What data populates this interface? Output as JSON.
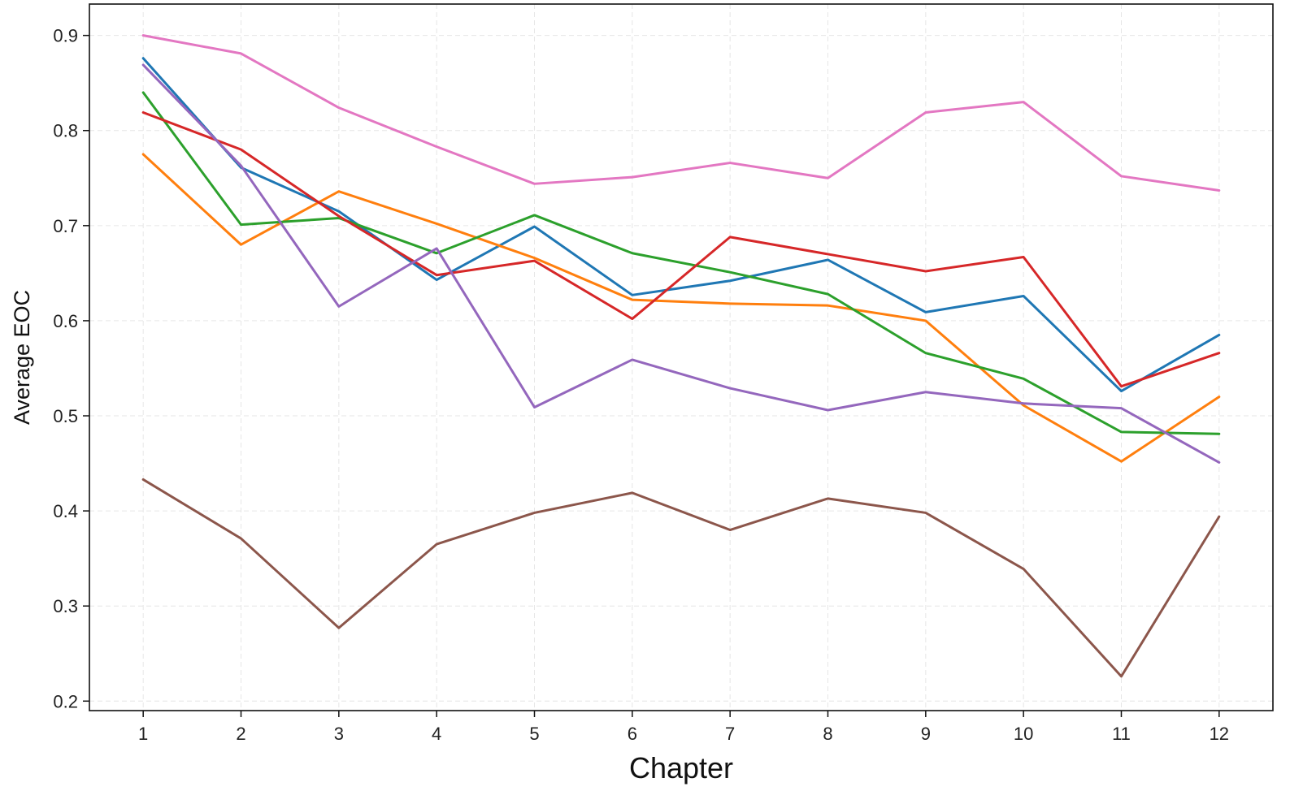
{
  "chart_data": {
    "type": "line",
    "title": "",
    "xlabel": "Chapter",
    "ylabel": "Average EOC",
    "x": [
      1,
      2,
      3,
      4,
      5,
      6,
      7,
      8,
      9,
      10,
      11,
      12
    ],
    "x_tick_labels": [
      "1",
      "2",
      "3",
      "4",
      "5",
      "6",
      "7",
      "8",
      "9",
      "10",
      "11",
      "12"
    ],
    "y_ticks": [
      0.2,
      0.3,
      0.4,
      0.5,
      0.6,
      0.7,
      0.8,
      0.9
    ],
    "y_tick_labels": [
      "0.2",
      "0.3",
      "0.4",
      "0.5",
      "0.6",
      "0.7",
      "0.8",
      "0.9"
    ],
    "xlim": [
      0.45,
      12.55
    ],
    "ylim": [
      0.19,
      0.933
    ],
    "grid": true,
    "legend": "none",
    "series": [
      {
        "color": "#1f77b4",
        "values": [
          0.876,
          0.761,
          0.715,
          0.643,
          0.699,
          0.627,
          0.642,
          0.664,
          0.609,
          0.626,
          0.526,
          0.585
        ]
      },
      {
        "color": "#ff7f0e",
        "values": [
          0.775,
          0.68,
          0.736,
          0.702,
          0.666,
          0.622,
          0.618,
          0.616,
          0.6,
          0.511,
          0.452,
          0.52
        ]
      },
      {
        "color": "#2ca02c",
        "values": [
          0.84,
          0.701,
          0.708,
          0.671,
          0.711,
          0.671,
          0.651,
          0.628,
          0.566,
          0.539,
          0.483,
          0.481
        ]
      },
      {
        "color": "#d62728",
        "values": [
          0.819,
          0.78,
          0.71,
          0.648,
          0.663,
          0.602,
          0.688,
          0.67,
          0.652,
          0.667,
          0.531,
          0.566
        ]
      },
      {
        "color": "#9467bd",
        "values": [
          0.869,
          0.763,
          0.615,
          0.676,
          0.509,
          0.559,
          0.529,
          0.506,
          0.525,
          0.513,
          0.508,
          0.451
        ]
      },
      {
        "color": "#8c564b",
        "values": [
          0.433,
          0.371,
          0.277,
          0.365,
          0.398,
          0.419,
          0.38,
          0.413,
          0.398,
          0.339,
          0.226,
          0.394
        ]
      },
      {
        "color": "#e377c2",
        "values": [
          0.9,
          0.881,
          0.824,
          0.783,
          0.744,
          0.751,
          0.766,
          0.75,
          0.819,
          0.83,
          0.752,
          0.737
        ]
      }
    ]
  }
}
